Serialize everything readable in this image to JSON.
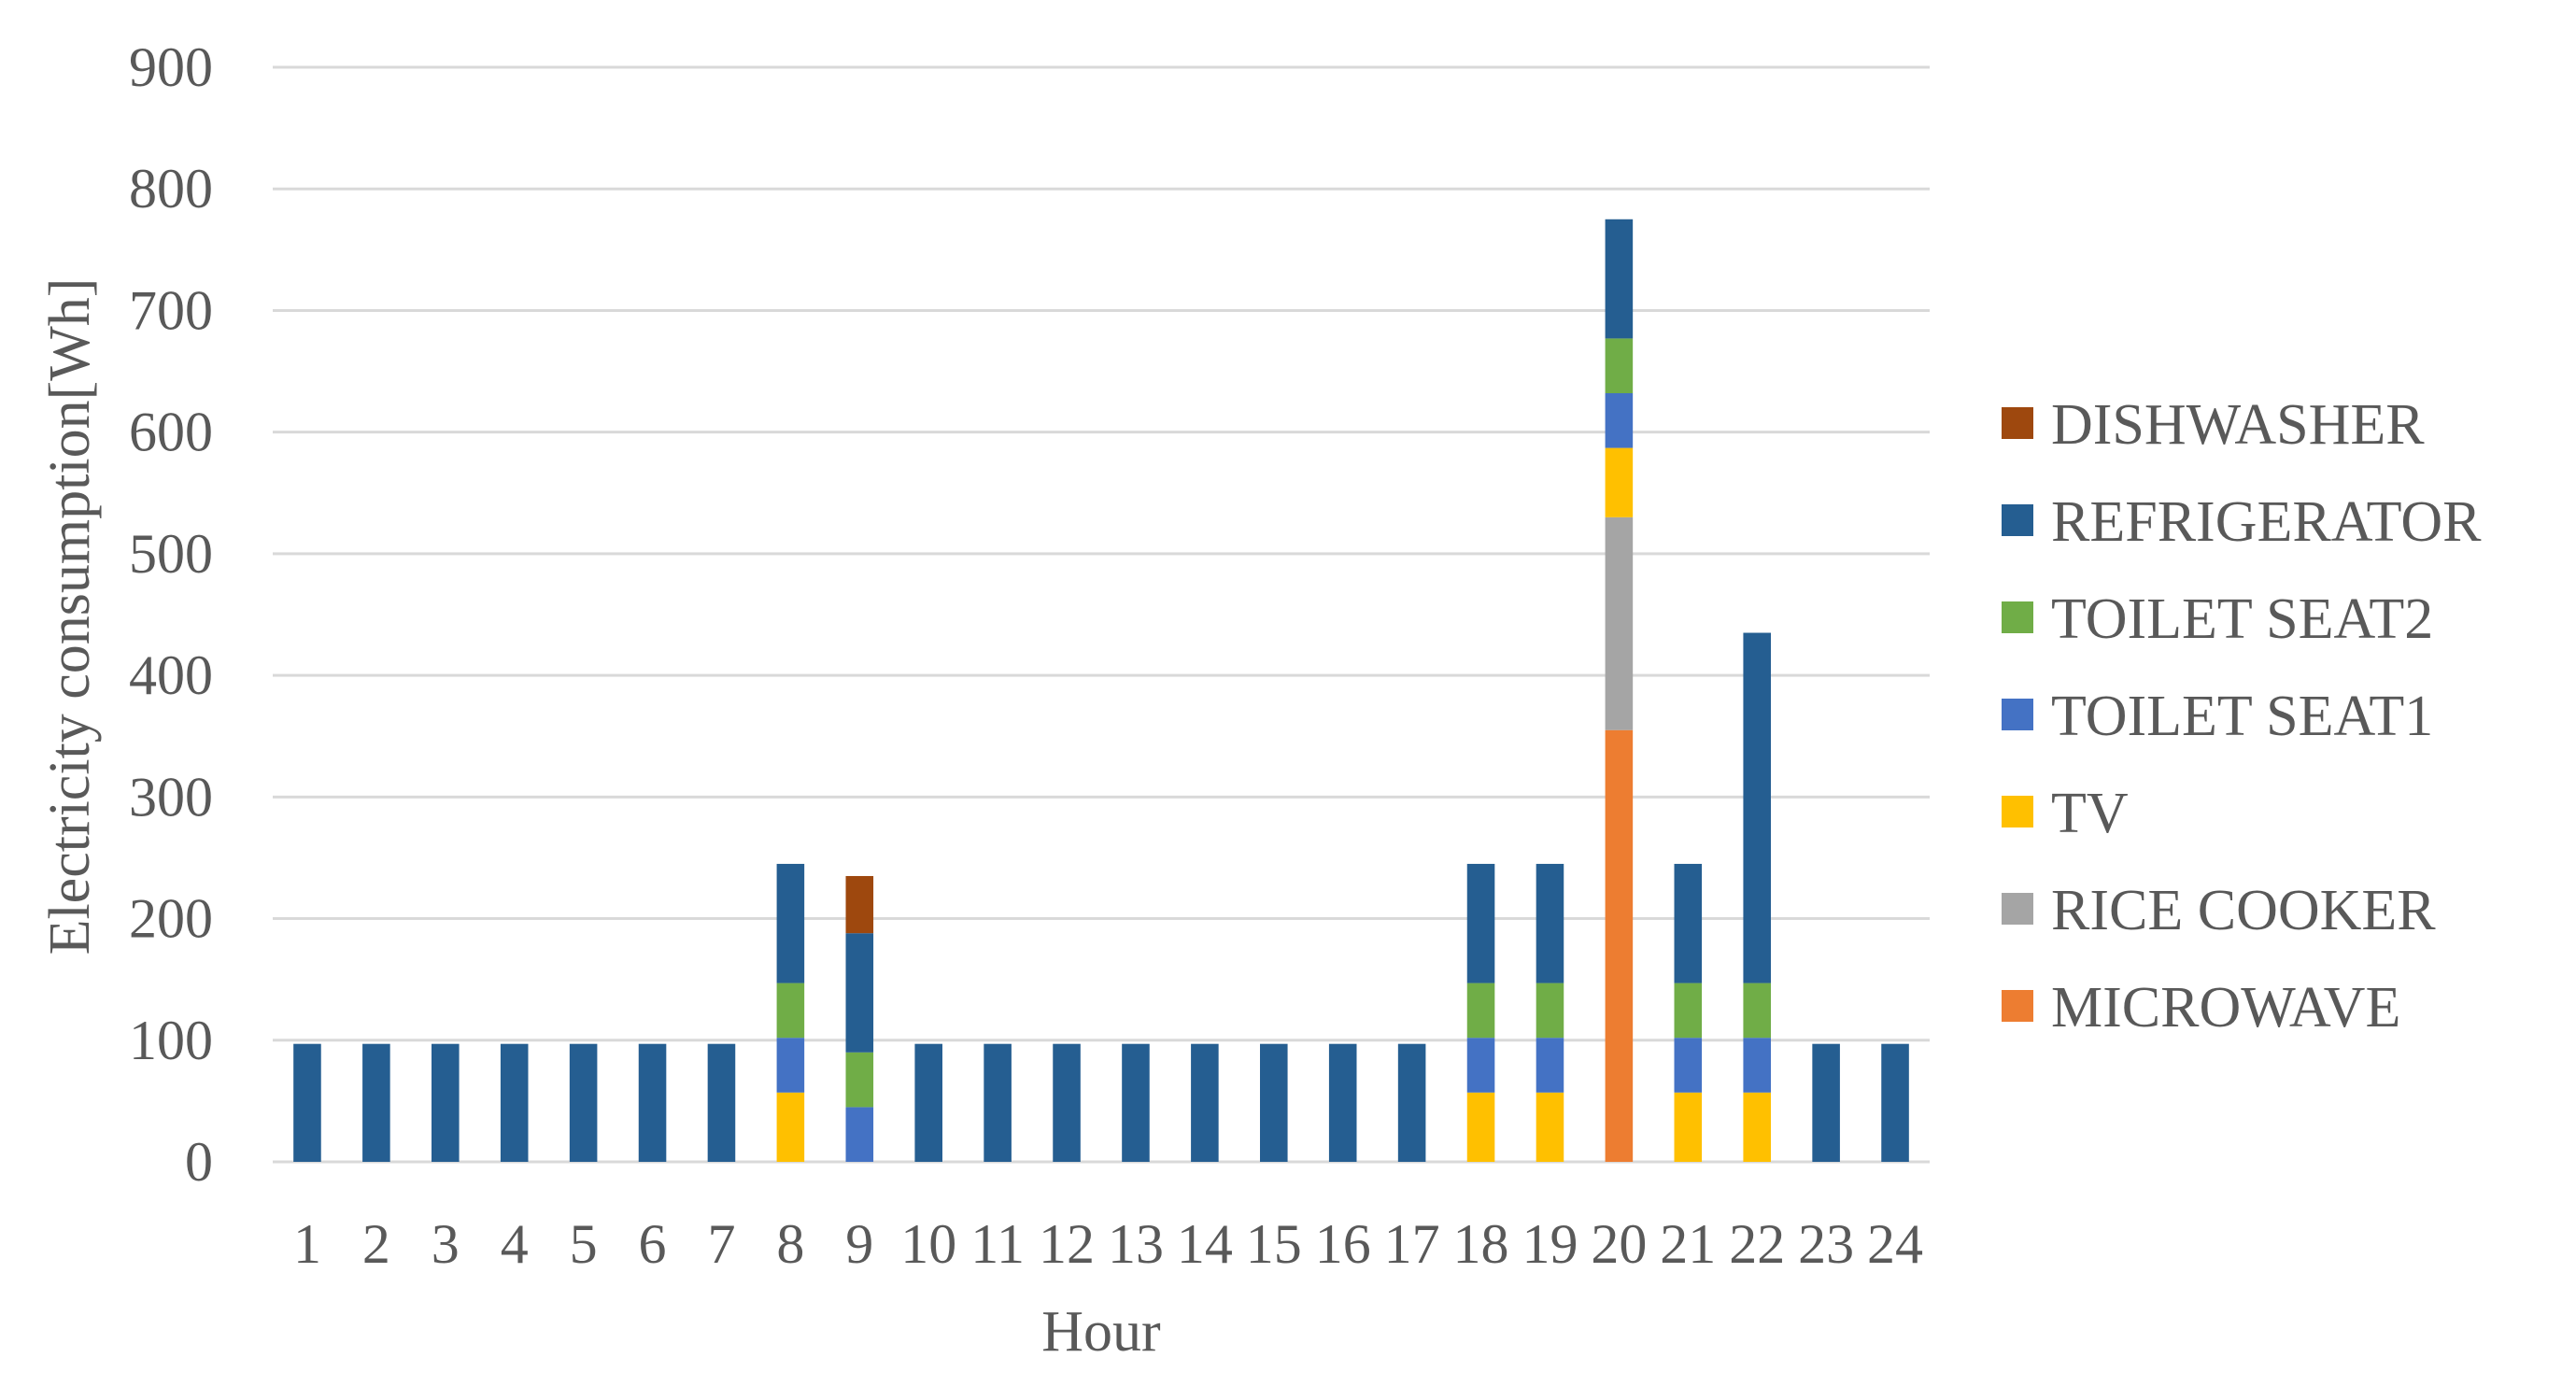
{
  "chart_data": {
    "type": "bar",
    "stacked": true,
    "xlabel": "Hour",
    "ylabel": "Electricity consumption[Wh]",
    "ylim": [
      0,
      900
    ],
    "yticks": [
      0,
      100,
      200,
      300,
      400,
      500,
      600,
      700,
      800,
      900
    ],
    "grid": true,
    "legend_position": "right",
    "categories": [
      "1",
      "2",
      "3",
      "4",
      "5",
      "6",
      "7",
      "8",
      "9",
      "10",
      "11",
      "12",
      "13",
      "14",
      "15",
      "16",
      "17",
      "18",
      "19",
      "20",
      "21",
      "22",
      "23",
      "24"
    ],
    "series": [
      {
        "name": "MICROWAVE",
        "color": "#ed7d31",
        "values": [
          0,
          0,
          0,
          0,
          0,
          0,
          0,
          0,
          0,
          0,
          0,
          0,
          0,
          0,
          0,
          0,
          0,
          0,
          0,
          355,
          0,
          0,
          0,
          0
        ]
      },
      {
        "name": "RICE COOKER",
        "color": "#a5a5a5",
        "values": [
          0,
          0,
          0,
          0,
          0,
          0,
          0,
          0,
          0,
          0,
          0,
          0,
          0,
          0,
          0,
          0,
          0,
          0,
          0,
          175,
          0,
          0,
          0,
          0
        ]
      },
      {
        "name": "TV",
        "color": "#ffc000",
        "values": [
          0,
          0,
          0,
          0,
          0,
          0,
          0,
          57,
          0,
          0,
          0,
          0,
          0,
          0,
          0,
          0,
          0,
          57,
          57,
          57,
          57,
          57,
          0,
          0
        ]
      },
      {
        "name": "TOILET SEAT1",
        "color": "#4472c4",
        "values": [
          0,
          0,
          0,
          0,
          0,
          0,
          0,
          45,
          45,
          0,
          0,
          0,
          0,
          0,
          0,
          0,
          0,
          45,
          45,
          45,
          45,
          45,
          0,
          0
        ]
      },
      {
        "name": "TOILET SEAT2",
        "color": "#70ad47",
        "values": [
          0,
          0,
          0,
          0,
          0,
          0,
          0,
          45,
          45,
          0,
          0,
          0,
          0,
          0,
          0,
          0,
          0,
          45,
          45,
          45,
          45,
          45,
          0,
          0
        ]
      },
      {
        "name": "REFRIGERATOR",
        "color": "#255e91",
        "values": [
          97,
          97,
          97,
          97,
          97,
          97,
          97,
          98,
          98,
          97,
          97,
          97,
          97,
          97,
          97,
          97,
          97,
          98,
          98,
          98,
          98,
          288,
          97,
          97
        ]
      },
      {
        "name": "DISHWASHER",
        "color": "#9e480e",
        "values": [
          0,
          0,
          0,
          0,
          0,
          0,
          0,
          0,
          47,
          0,
          0,
          0,
          0,
          0,
          0,
          0,
          0,
          0,
          0,
          0,
          0,
          0,
          0,
          0
        ]
      }
    ]
  }
}
